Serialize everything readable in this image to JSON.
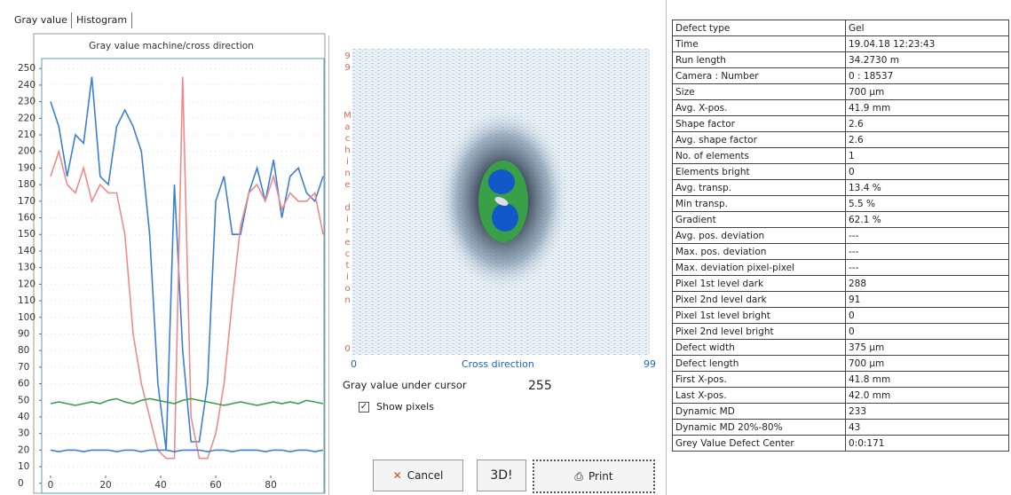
{
  "tabs": [
    "Gray value",
    "Histogram"
  ],
  "chart_data": {
    "type": "line",
    "title": "Gray value machine/cross direction",
    "x": [
      0,
      3,
      6,
      9,
      12,
      15,
      18,
      21,
      24,
      27,
      30,
      33,
      36,
      39,
      42,
      45,
      48,
      51,
      54,
      57,
      60,
      63,
      66,
      69,
      72,
      75,
      78,
      81,
      84,
      87,
      90,
      93,
      96,
      99
    ],
    "series": [
      {
        "color": "#3b7fd4",
        "values": [
          230,
          215,
          185,
          210,
          205,
          245,
          185,
          180,
          215,
          225,
          215,
          200,
          150,
          60,
          20,
          180,
          80,
          25,
          25,
          60,
          170,
          185,
          150,
          150,
          175,
          190,
          170,
          195,
          160,
          185,
          190,
          175,
          170,
          185
        ]
      },
      {
        "color": "#f08a8a",
        "values": [
          185,
          200,
          180,
          175,
          190,
          170,
          180,
          175,
          175,
          150,
          90,
          60,
          40,
          20,
          15,
          15,
          245,
          40,
          15,
          15,
          30,
          60,
          110,
          155,
          175,
          180,
          170,
          185,
          165,
          175,
          170,
          170,
          175,
          150
        ]
      },
      {
        "color": "#3aa048",
        "values": [
          48,
          49,
          48,
          47,
          48,
          49,
          48,
          50,
          51,
          49,
          48,
          50,
          51,
          50,
          49,
          48,
          50,
          51,
          50,
          49,
          48,
          47,
          48,
          49,
          48,
          47,
          48,
          49,
          48,
          49,
          48,
          50,
          49,
          48
        ]
      },
      {
        "color": "#3b7fd4",
        "values": [
          20,
          19,
          20,
          20,
          19,
          20,
          20,
          20,
          19,
          20,
          20,
          19,
          20,
          20,
          20,
          19,
          20,
          20,
          20,
          19,
          20,
          20,
          19,
          20,
          20,
          20,
          19,
          20,
          20,
          19,
          20,
          20,
          19,
          20
        ]
      }
    ],
    "xlim": [
      0,
      99
    ],
    "ylim": [
      -6,
      256
    ],
    "xticks": [
      0,
      20,
      40,
      60,
      80
    ],
    "yticks": [
      0,
      10,
      20,
      30,
      40,
      50,
      60,
      70,
      80,
      90,
      100,
      110,
      120,
      130,
      140,
      150,
      160,
      170,
      180,
      190,
      200,
      210,
      220,
      230,
      240,
      250
    ]
  },
  "image": {
    "top_label": "99",
    "side_label": "Machine direction",
    "bottom_label": "0",
    "x_start": "0",
    "x_title": "Cross direction",
    "x_end": "99"
  },
  "cursor": {
    "label": "Gray value under cursor",
    "value": "255"
  },
  "checkbox": "Show pixels",
  "buttons": [
    "Cancel",
    "3D!",
    "Print"
  ],
  "table": {
    "rows": [
      [
        "Defect type",
        "Gel"
      ],
      [
        "Time",
        "19.04.18  12:23:43"
      ],
      [
        "Run length",
        "34.2730 m"
      ],
      [
        "Camera : Number",
        "0  :  18537"
      ],
      [
        "Size",
        "700 µm"
      ],
      [
        "Avg. X-pos.",
        "41.9 mm"
      ],
      [
        "Shape factor",
        "2.6"
      ],
      [
        "Avg. shape factor",
        "2.6"
      ],
      [
        "No. of elements",
        "1"
      ],
      [
        "Elements bright",
        "0"
      ],
      [
        "Avg. transp.",
        "13.4 %"
      ],
      [
        "Min transp.",
        "5.5 %"
      ],
      [
        "Gradient",
        "62.1 %"
      ],
      [
        "Avg. pos. deviation",
        "---"
      ],
      [
        "Max. pos. deviation",
        "---"
      ],
      [
        "Max. deviation pixel-pixel",
        "---"
      ],
      [
        "Pixel 1st level dark",
        "288"
      ],
      [
        "Pixel 2nd level dark",
        "91"
      ],
      [
        "Pixel 1st level bright",
        "0"
      ],
      [
        "Pixel 2nd level bright",
        "0"
      ],
      [
        "Defect width",
        "375 µm"
      ],
      [
        "Defect length",
        "700 µm"
      ],
      [
        "First X-pos.",
        "41.8 mm"
      ],
      [
        "Last X-pos.",
        "42.0 mm"
      ],
      [
        "Dynamic MD",
        "233"
      ],
      [
        "Dynamic MD 20%-80%",
        "43"
      ],
      [
        "Grey Value Defect Center",
        "0:0:171"
      ]
    ]
  }
}
